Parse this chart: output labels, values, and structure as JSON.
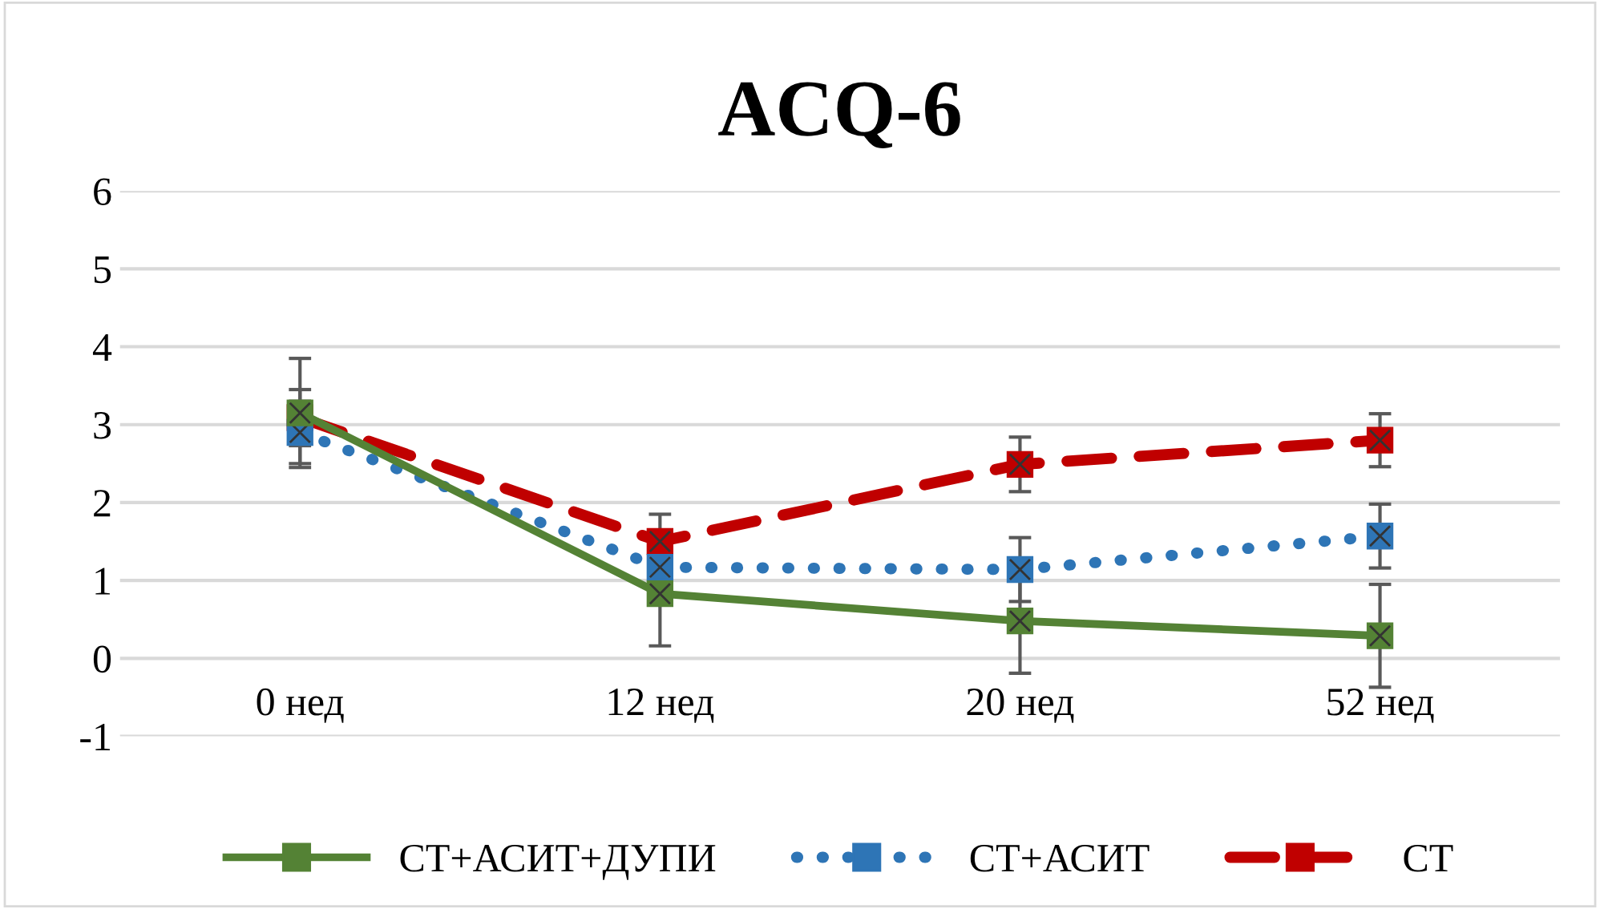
{
  "chart_data": {
    "type": "line",
    "title": "ACQ-6",
    "categories": [
      "0 нед",
      "12 нед",
      "20 нед",
      "52 нед"
    ],
    "series": [
      {
        "name": "СТ+АСИТ+ДУПИ",
        "color": "#548235",
        "values": [
          3.15,
          0.83,
          0.48,
          0.29
        ],
        "errors": [
          0.7,
          0.67,
          0.67,
          0.66
        ],
        "line_style": "solid"
      },
      {
        "name": "СТ+АСИТ",
        "color": "#2e75b6",
        "values": [
          2.9,
          1.17,
          1.14,
          1.57
        ],
        "errors": [
          0.4,
          null,
          0.41,
          0.41
        ],
        "line_style": "dotted"
      },
      {
        "name": "СТ",
        "color": "#c00000",
        "values": [
          3.09,
          1.5,
          2.49,
          2.8
        ],
        "errors": [
          0.36,
          0.35,
          0.35,
          0.34
        ],
        "line_style": "dashed"
      }
    ],
    "ylim": [
      -1,
      6
    ],
    "yticks": [
      -1,
      0,
      1,
      2,
      3,
      4,
      5,
      6
    ],
    "grid": "y",
    "legend": "bottom",
    "marker": "square"
  }
}
